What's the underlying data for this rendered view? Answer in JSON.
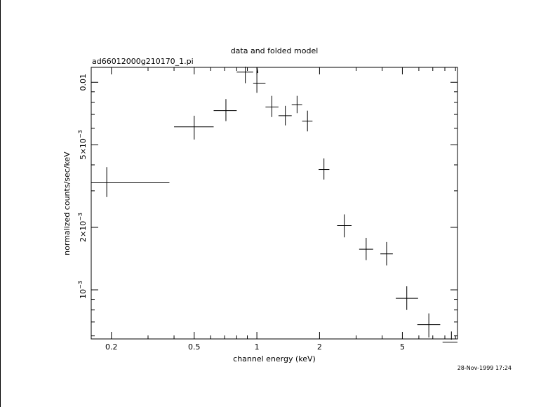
{
  "chart_data": {
    "type": "scatter",
    "title": "data and folded model",
    "subtitle": "ad66012000g210170_1.pi",
    "xlabel": "channel energy (keV)",
    "ylabel": "normalized counts/sec/keV",
    "x_scale": "log",
    "y_scale": "log",
    "xlim": [
      0.16,
      9.2
    ],
    "ylim": [
      0.00058,
      0.0118
    ],
    "x_ticks": [
      {
        "value": 0.2,
        "label": "0.2"
      },
      {
        "value": 0.5,
        "label": "0.5"
      },
      {
        "value": 1,
        "label": "1"
      },
      {
        "value": 2,
        "label": "2"
      },
      {
        "value": 5,
        "label": "5"
      }
    ],
    "y_ticks": [
      {
        "value": 0.001,
        "base": "10",
        "exp": "−3"
      },
      {
        "value": 0.002,
        "base": "2×10",
        "exp": "−3"
      },
      {
        "value": 0.005,
        "base": "5×10",
        "exp": "−3"
      },
      {
        "value": 0.01,
        "base": "0.01",
        "exp": ""
      }
    ],
    "series": [
      {
        "points": [
          {
            "x": 0.19,
            "xlo": 0.16,
            "xhi": 0.38,
            "y": 0.00328,
            "ylo": 0.0028,
            "yhi": 0.0039
          },
          {
            "x": 0.5,
            "xlo": 0.4,
            "xhi": 0.62,
            "y": 0.0061,
            "ylo": 0.0053,
            "yhi": 0.0069
          },
          {
            "x": 0.71,
            "xlo": 0.62,
            "xhi": 0.8,
            "y": 0.0073,
            "ylo": 0.0065,
            "yhi": 0.0083
          },
          {
            "x": 0.88,
            "xlo": 0.8,
            "xhi": 0.96,
            "y": 0.0112,
            "ylo": 0.0099,
            "yhi": 0.0125
          },
          {
            "x": 1.0,
            "xlo": 0.96,
            "xhi": 1.1,
            "y": 0.0099,
            "ylo": 0.0089,
            "yhi": 0.0113
          },
          {
            "x": 1.18,
            "xlo": 1.1,
            "xhi": 1.27,
            "y": 0.0076,
            "ylo": 0.0068,
            "yhi": 0.0086
          },
          {
            "x": 1.37,
            "xlo": 1.27,
            "xhi": 1.47,
            "y": 0.0069,
            "ylo": 0.0062,
            "yhi": 0.0077
          },
          {
            "x": 1.56,
            "xlo": 1.47,
            "xhi": 1.65,
            "y": 0.0078,
            "ylo": 0.0071,
            "yhi": 0.0086
          },
          {
            "x": 1.75,
            "xlo": 1.65,
            "xhi": 1.85,
            "y": 0.0065,
            "ylo": 0.0058,
            "yhi": 0.0073
          },
          {
            "x": 2.1,
            "xlo": 1.98,
            "xhi": 2.23,
            "y": 0.0038,
            "ylo": 0.0034,
            "yhi": 0.0043
          },
          {
            "x": 2.63,
            "xlo": 2.43,
            "xhi": 2.85,
            "y": 0.00204,
            "ylo": 0.00179,
            "yhi": 0.00231
          },
          {
            "x": 3.35,
            "xlo": 3.1,
            "xhi": 3.62,
            "y": 0.00157,
            "ylo": 0.00139,
            "yhi": 0.00178
          },
          {
            "x": 4.2,
            "xlo": 3.92,
            "xhi": 4.5,
            "y": 0.00149,
            "ylo": 0.00131,
            "yhi": 0.0017
          },
          {
            "x": 5.25,
            "xlo": 4.65,
            "xhi": 5.95,
            "y": 0.00091,
            "ylo": 0.0008,
            "yhi": 0.00104
          },
          {
            "x": 6.7,
            "xlo": 5.9,
            "xhi": 7.6,
            "y": 0.00068,
            "ylo": 0.00059,
            "yhi": 0.00077
          },
          {
            "x": 8.6,
            "xlo": 7.8,
            "xhi": 9.2,
            "y": 0.00056,
            "ylo": 0.0005,
            "yhi": 0.00063
          }
        ]
      }
    ],
    "model_line": [
      {
        "x": 1.0,
        "y": 0.0118
      },
      {
        "x": 1.01,
        "y": 0.0111
      }
    ],
    "timestamp": "28-Nov-1999 17:24"
  }
}
